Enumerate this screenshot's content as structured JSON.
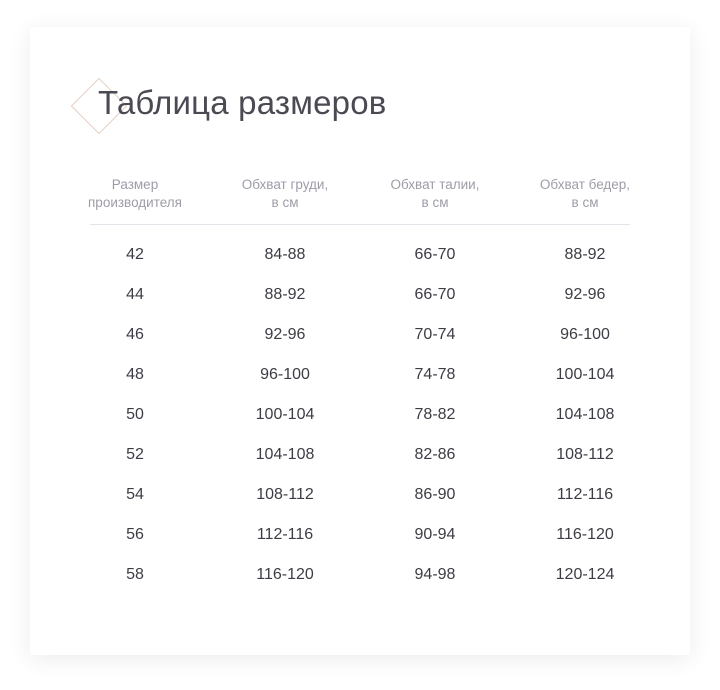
{
  "title": "Таблица размеров",
  "columns": [
    "Размер\nпроизводителя",
    "Обхват груди,\nв см",
    "Обхват талии,\nв см",
    "Обхват бедер,\nв см"
  ],
  "rows": [
    [
      "42",
      "84-88",
      "66-70",
      "88-92"
    ],
    [
      "44",
      "88-92",
      "66-70",
      "92-96"
    ],
    [
      "46",
      "92-96",
      "70-74",
      "96-100"
    ],
    [
      "48",
      "96-100",
      "74-78",
      "100-104"
    ],
    [
      "50",
      "100-104",
      "78-82",
      "104-108"
    ],
    [
      "52",
      "104-108",
      "82-86",
      "108-112"
    ],
    [
      "54",
      "108-112",
      "86-90",
      "112-116"
    ],
    [
      "56",
      "112-116",
      "90-94",
      "116-120"
    ],
    [
      "58",
      "116-120",
      "94-98",
      "120-124"
    ]
  ],
  "colors": {
    "accent_diamond": "#e6cfc1",
    "text": "#3c3c44",
    "header_text": "#9d9da8"
  }
}
